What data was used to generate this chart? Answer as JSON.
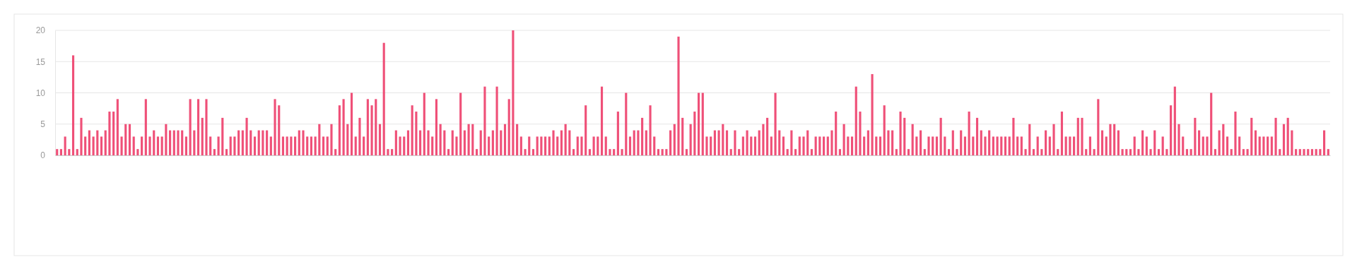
{
  "chart_data": {
    "type": "bar",
    "color": "#ef5078",
    "ylim": [
      0,
      20
    ],
    "yticks": [
      0,
      5,
      10,
      15,
      20
    ],
    "grid": "y",
    "categories": [
      null,
      null,
      null,
      null,
      null,
      null,
      null,
      null,
      null,
      null,
      null,
      null,
      null,
      null,
      null,
      null,
      null,
      null,
      null,
      null,
      null,
      null,
      null,
      null,
      null,
      null,
      null,
      null,
      null,
      null,
      null,
      null,
      null,
      null,
      null,
      null,
      null,
      null,
      null,
      null,
      null,
      null,
      null,
      null,
      null,
      null,
      null,
      null,
      null,
      null,
      null,
      null,
      null,
      null,
      null,
      null,
      null,
      null,
      null,
      null,
      null,
      null,
      null,
      null,
      null,
      null,
      null,
      null,
      null,
      null,
      null,
      null,
      null,
      null,
      null,
      null,
      null,
      null,
      null,
      null,
      null,
      null,
      null,
      null,
      null,
      null,
      null,
      null,
      null,
      null,
      null,
      null,
      null,
      null,
      null,
      null,
      null,
      null,
      null,
      null,
      null,
      null,
      null,
      null,
      null,
      null,
      null,
      null,
      null,
      null,
      null,
      null,
      null,
      null,
      null,
      null,
      null,
      null,
      null,
      null,
      null,
      null,
      null,
      null,
      null,
      null,
      null,
      null,
      null,
      null,
      null,
      null,
      null,
      null,
      null,
      null,
      null,
      null,
      null,
      null,
      null,
      null,
      null,
      null,
      null,
      null,
      null,
      null,
      null,
      null,
      null,
      null,
      null,
      null,
      null,
      null,
      null,
      null,
      null,
      null,
      null,
      null,
      null,
      null,
      null,
      null,
      null,
      null,
      null,
      null,
      null,
      null,
      null,
      null,
      null,
      null,
      null,
      null,
      null,
      null,
      null,
      null,
      null,
      null,
      null,
      null,
      null,
      null,
      null,
      null,
      null,
      null,
      null,
      null,
      null,
      null,
      null,
      null,
      null,
      null,
      null,
      null,
      null,
      null,
      null,
      null,
      null,
      null,
      null,
      null,
      null,
      null,
      null,
      null,
      null,
      null,
      null,
      null,
      null,
      null,
      null,
      null,
      null,
      null,
      null,
      null,
      null,
      null,
      null,
      null,
      null,
      null,
      null,
      null,
      null,
      null,
      null,
      null,
      null,
      null,
      null,
      null,
      null,
      null,
      null,
      null,
      null,
      null,
      null,
      null,
      null,
      null,
      null,
      null,
      null,
      null,
      null,
      null,
      null,
      null,
      null,
      null,
      null,
      null,
      null,
      null,
      null,
      null,
      null,
      null,
      null,
      null,
      null,
      null,
      null,
      null,
      null,
      null,
      null,
      null,
      null,
      null,
      null,
      null,
      null,
      null,
      null,
      null,
      null,
      null,
      null,
      null,
      null,
      null,
      null,
      null,
      null,
      null,
      null,
      null,
      null,
      null,
      null,
      null,
      null,
      null,
      null,
      null,
      null,
      null,
      null,
      null,
      null,
      null,
      null,
      null
    ],
    "values": [
      1,
      1,
      3,
      1,
      16,
      1,
      6,
      3,
      4,
      3,
      4,
      3,
      4,
      7,
      7,
      9,
      3,
      5,
      5,
      3,
      1,
      3,
      9,
      3,
      4,
      3,
      3,
      5,
      4,
      4,
      4,
      4,
      3,
      9,
      4,
      9,
      6,
      9,
      3,
      1,
      3,
      6,
      1,
      3,
      3,
      4,
      4,
      6,
      4,
      3,
      4,
      4,
      4,
      3,
      9,
      8,
      3,
      3,
      3,
      3,
      4,
      4,
      3,
      3,
      3,
      5,
      3,
      3,
      5,
      1,
      8,
      9,
      5,
      10,
      3,
      6,
      3,
      9,
      8,
      9,
      5,
      18,
      1,
      1,
      4,
      3,
      3,
      4,
      8,
      7,
      4,
      10,
      4,
      3,
      9,
      5,
      4,
      1,
      4,
      3,
      10,
      4,
      5,
      5,
      1,
      4,
      11,
      3,
      4,
      11,
      4,
      5,
      9,
      20,
      5,
      3,
      1,
      3,
      1,
      3,
      3,
      3,
      3,
      4,
      3,
      4,
      5,
      4,
      1,
      3,
      3,
      8,
      1,
      3,
      3,
      11,
      3,
      1,
      1,
      7,
      1,
      10,
      3,
      4,
      4,
      6,
      4,
      8,
      3,
      1,
      1,
      1,
      4,
      5,
      19,
      6,
      1,
      5,
      7,
      10,
      10,
      3,
      3,
      4,
      4,
      5,
      4,
      1,
      4,
      1,
      3,
      4,
      3,
      3,
      4,
      5,
      6,
      3,
      10,
      4,
      3,
      1,
      4,
      1,
      3,
      3,
      4,
      1,
      3,
      3,
      3,
      3,
      4,
      7,
      1,
      5,
      3,
      3,
      11,
      7,
      3,
      4,
      13,
      3,
      3,
      8,
      4,
      4,
      1,
      7,
      6,
      1,
      5,
      3,
      4,
      1,
      3,
      3,
      3,
      6,
      3,
      1,
      4,
      1,
      4,
      3,
      7,
      3,
      6,
      4,
      3,
      4,
      3,
      3,
      3,
      3,
      3,
      6,
      3,
      3,
      1,
      5,
      1,
      3,
      1,
      4,
      3,
      5,
      1,
      7,
      3,
      3,
      3,
      6,
      6,
      1,
      3,
      1,
      9,
      4,
      3,
      5,
      5,
      4,
      1,
      1,
      1,
      3,
      1,
      4,
      3,
      1,
      4,
      1,
      3,
      1,
      8,
      11,
      5,
      3,
      1,
      1,
      6,
      4,
      3,
      3,
      10,
      1,
      4,
      5,
      3,
      1,
      7,
      3,
      1,
      1,
      6,
      4,
      3,
      3,
      3,
      3,
      6,
      1,
      5,
      6,
      4,
      1,
      1,
      1,
      1,
      1,
      1,
      1,
      4,
      1
    ]
  }
}
